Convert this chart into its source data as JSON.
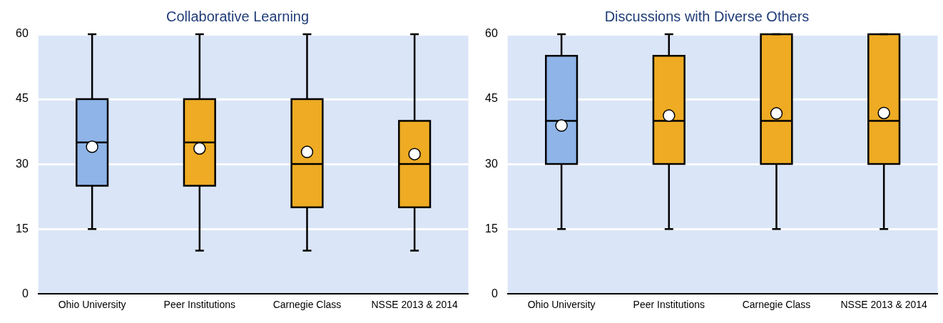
{
  "chart_data": [
    {
      "type": "box",
      "title": "Collaborative Learning",
      "categories": [
        "Ohio University",
        "Peer Institutions",
        "Carnegie Class",
        "NSSE 2013 & 2014"
      ],
      "colors": [
        "#8eb4e8",
        "#eeab23",
        "#eeab23",
        "#eeab23"
      ],
      "boxes": [
        {
          "low": 15,
          "q1": 25,
          "median": 35,
          "q3": 45,
          "high": 60,
          "mean": 34
        },
        {
          "low": 10,
          "q1": 25,
          "median": 35,
          "q3": 45,
          "high": 60,
          "mean": 33.6
        },
        {
          "low": 10,
          "q1": 20,
          "median": 30,
          "q3": 45,
          "high": 60,
          "mean": 32.8
        },
        {
          "low": 10,
          "q1": 20,
          "median": 30,
          "q3": 40,
          "high": 60,
          "mean": 32.3
        }
      ],
      "ylim": [
        0,
        60
      ],
      "yticks": [
        0,
        15,
        30,
        45,
        60
      ],
      "grid": "y"
    },
    {
      "type": "box",
      "title": "Discussions with Diverse Others",
      "categories": [
        "Ohio University",
        "Peer Institutions",
        "Carnegie Class",
        "NSSE 2013 & 2014"
      ],
      "colors": [
        "#8eb4e8",
        "#eeab23",
        "#eeab23",
        "#eeab23"
      ],
      "boxes": [
        {
          "low": 15,
          "q1": 30,
          "median": 40,
          "q3": 55,
          "high": 60,
          "mean": 38.9
        },
        {
          "low": 15,
          "q1": 30,
          "median": 40,
          "q3": 55,
          "high": 60,
          "mean": 41.2
        },
        {
          "low": 15,
          "q1": 30,
          "median": 40,
          "q3": 60,
          "high": 60,
          "mean": 41.7
        },
        {
          "low": 15,
          "q1": 30,
          "median": 40,
          "q3": 60,
          "high": 60,
          "mean": 41.8
        }
      ],
      "ylim": [
        0,
        60
      ],
      "yticks": [
        0,
        15,
        30,
        45,
        60
      ],
      "grid": "y"
    }
  ]
}
